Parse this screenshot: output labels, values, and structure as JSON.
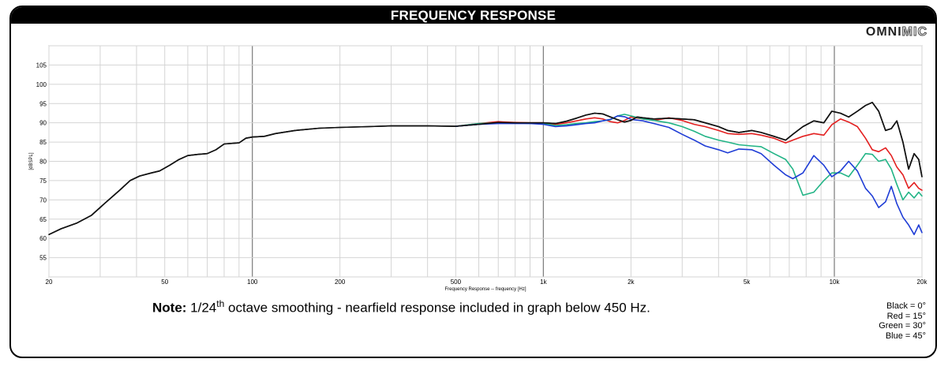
{
  "header": {
    "title": "FREQUENCY RESPONSE"
  },
  "logo": {
    "part1": "OMNI",
    "part2": "MIC"
  },
  "note": {
    "bold": "Note:",
    "text_before": " 1/24",
    "sup": "th",
    "text_after": " octave smoothing - nearfield response included in graph below 450 Hz."
  },
  "legend": {
    "items": [
      "Black = 0°",
      "Red = 15°",
      "Green = 30°",
      "Blue = 45°"
    ]
  },
  "chart_data": {
    "type": "line",
    "xscale": "log",
    "xlim": [
      20,
      20000
    ],
    "ylim": [
      50,
      110
    ],
    "xlabel": "Frequency Response -- frequency [Hz]",
    "ylabel": "[dBSPL]",
    "grid": true,
    "x_tick_labels": [
      {
        "v": 20,
        "t": "20"
      },
      {
        "v": 50,
        "t": "50"
      },
      {
        "v": 100,
        "t": "100"
      },
      {
        "v": 200,
        "t": "200"
      },
      {
        "v": 500,
        "t": "500"
      },
      {
        "v": 1000,
        "t": "1k"
      },
      {
        "v": 2000,
        "t": "2k"
      },
      {
        "v": 5000,
        "t": "5k"
      },
      {
        "v": 10000,
        "t": "10k"
      },
      {
        "v": 20000,
        "t": "20k"
      }
    ],
    "y_tick_labels": [
      55,
      60,
      65,
      70,
      75,
      80,
      85,
      90,
      95,
      100,
      105
    ],
    "series": [
      {
        "name": "Black = 0°",
        "color": "#111111",
        "points": [
          [
            20,
            61
          ],
          [
            22,
            62.5
          ],
          [
            25,
            64
          ],
          [
            28,
            66
          ],
          [
            31,
            69
          ],
          [
            35,
            72.5
          ],
          [
            38,
            75
          ],
          [
            41,
            76.2
          ],
          [
            45,
            77
          ],
          [
            48,
            77.5
          ],
          [
            52,
            79
          ],
          [
            56,
            80.5
          ],
          [
            60,
            81.5
          ],
          [
            65,
            81.8
          ],
          [
            70,
            82
          ],
          [
            75,
            83
          ],
          [
            80,
            84.5
          ],
          [
            90,
            84.8
          ],
          [
            95,
            86
          ],
          [
            100,
            86.3
          ],
          [
            110,
            86.5
          ],
          [
            120,
            87.2
          ],
          [
            140,
            88
          ],
          [
            170,
            88.6
          ],
          [
            200,
            88.8
          ],
          [
            250,
            89
          ],
          [
            300,
            89.2
          ],
          [
            400,
            89.2
          ],
          [
            500,
            89.1
          ],
          [
            600,
            89.6
          ],
          [
            700,
            90.1
          ],
          [
            800,
            90
          ],
          [
            900,
            90
          ],
          [
            1000,
            90
          ],
          [
            1100,
            89.8
          ],
          [
            1200,
            90.4
          ],
          [
            1300,
            91.2
          ],
          [
            1400,
            92
          ],
          [
            1500,
            92.5
          ],
          [
            1600,
            92.3
          ],
          [
            1700,
            91.5
          ],
          [
            1800,
            90.8
          ],
          [
            1900,
            90.2
          ],
          [
            2000,
            90.6
          ],
          [
            2100,
            91.5
          ],
          [
            2200,
            91.3
          ],
          [
            2400,
            91
          ],
          [
            2700,
            91.2
          ],
          [
            3000,
            91
          ],
          [
            3300,
            90.8
          ],
          [
            3600,
            90
          ],
          [
            4000,
            89
          ],
          [
            4300,
            88
          ],
          [
            4700,
            87.5
          ],
          [
            5200,
            88
          ],
          [
            5600,
            87.5
          ],
          [
            6200,
            86.5
          ],
          [
            6800,
            85.5
          ],
          [
            7200,
            87
          ],
          [
            7800,
            89
          ],
          [
            8500,
            90.5
          ],
          [
            9200,
            90
          ],
          [
            9800,
            93
          ],
          [
            10500,
            92.5
          ],
          [
            11200,
            91.5
          ],
          [
            12000,
            93
          ],
          [
            12800,
            94.5
          ],
          [
            13500,
            95.3
          ],
          [
            14200,
            93
          ],
          [
            15000,
            88
          ],
          [
            15700,
            88.5
          ],
          [
            16400,
            90.5
          ],
          [
            17200,
            85
          ],
          [
            18000,
            78
          ],
          [
            18800,
            82
          ],
          [
            19500,
            80.5
          ],
          [
            20000,
            76
          ]
        ]
      },
      {
        "name": "Red = 15°",
        "color": "#e32020",
        "points": [
          [
            500,
            89.1
          ],
          [
            600,
            89.8
          ],
          [
            700,
            90.3
          ],
          [
            800,
            90.1
          ],
          [
            900,
            90
          ],
          [
            1000,
            90
          ],
          [
            1100,
            89.6
          ],
          [
            1200,
            90
          ],
          [
            1300,
            90.5
          ],
          [
            1400,
            91
          ],
          [
            1500,
            91.3
          ],
          [
            1600,
            91
          ],
          [
            1700,
            90.3
          ],
          [
            1800,
            90
          ],
          [
            1900,
            90.6
          ],
          [
            2000,
            91.5
          ],
          [
            2200,
            91
          ],
          [
            2400,
            90.6
          ],
          [
            2700,
            91.3
          ],
          [
            3000,
            90.6
          ],
          [
            3300,
            89.6
          ],
          [
            3600,
            89
          ],
          [
            4000,
            88
          ],
          [
            4300,
            87.2
          ],
          [
            4700,
            87
          ],
          [
            5200,
            87.2
          ],
          [
            5600,
            86.8
          ],
          [
            6200,
            86
          ],
          [
            6800,
            84.8
          ],
          [
            7200,
            85.5
          ],
          [
            7800,
            86.5
          ],
          [
            8500,
            87.2
          ],
          [
            9200,
            86.8
          ],
          [
            9800,
            89.5
          ],
          [
            10500,
            91
          ],
          [
            11200,
            90.2
          ],
          [
            12000,
            89
          ],
          [
            12800,
            86
          ],
          [
            13500,
            83
          ],
          [
            14200,
            82.5
          ],
          [
            15000,
            83.5
          ],
          [
            15700,
            81.5
          ],
          [
            16400,
            78.5
          ],
          [
            17200,
            76.5
          ],
          [
            18000,
            73
          ],
          [
            18800,
            74.5
          ],
          [
            19500,
            73
          ],
          [
            20000,
            72.5
          ]
        ]
      },
      {
        "name": "Green = 30°",
        "color": "#22b486",
        "points": [
          [
            500,
            89.1
          ],
          [
            600,
            89.8
          ],
          [
            700,
            90
          ],
          [
            800,
            90
          ],
          [
            900,
            89.8
          ],
          [
            1000,
            89.8
          ],
          [
            1100,
            89.3
          ],
          [
            1200,
            89.5
          ],
          [
            1300,
            89.8
          ],
          [
            1400,
            90
          ],
          [
            1500,
            90.3
          ],
          [
            1600,
            90.5
          ],
          [
            1700,
            90.8
          ],
          [
            1800,
            91.8
          ],
          [
            1900,
            92.2
          ],
          [
            2000,
            91.8
          ],
          [
            2200,
            91
          ],
          [
            2400,
            90.6
          ],
          [
            2700,
            90
          ],
          [
            3000,
            89
          ],
          [
            3300,
            87.8
          ],
          [
            3600,
            86.5
          ],
          [
            4000,
            85.5
          ],
          [
            4300,
            85
          ],
          [
            4700,
            84.3
          ],
          [
            5200,
            84
          ],
          [
            5600,
            83.8
          ],
          [
            6200,
            82
          ],
          [
            6800,
            80.5
          ],
          [
            7200,
            78
          ],
          [
            7800,
            71.2
          ],
          [
            8500,
            72
          ],
          [
            9200,
            75
          ],
          [
            9800,
            77
          ],
          [
            10500,
            77
          ],
          [
            11200,
            76
          ],
          [
            12000,
            79
          ],
          [
            12800,
            82
          ],
          [
            13500,
            81.8
          ],
          [
            14200,
            80
          ],
          [
            15000,
            80.5
          ],
          [
            15700,
            78
          ],
          [
            16400,
            74
          ],
          [
            17200,
            70
          ],
          [
            18000,
            72
          ],
          [
            18800,
            70.5
          ],
          [
            19500,
            72
          ],
          [
            20000,
            71
          ]
        ]
      },
      {
        "name": "Blue = 45°",
        "color": "#1f3dd6",
        "points": [
          [
            500,
            89.1
          ],
          [
            600,
            89.6
          ],
          [
            700,
            89.8
          ],
          [
            800,
            89.8
          ],
          [
            900,
            89.8
          ],
          [
            1000,
            89.6
          ],
          [
            1100,
            89
          ],
          [
            1200,
            89.2
          ],
          [
            1300,
            89.5
          ],
          [
            1400,
            89.8
          ],
          [
            1500,
            90
          ],
          [
            1600,
            90.5
          ],
          [
            1700,
            90.9
          ],
          [
            1800,
            91.8
          ],
          [
            1900,
            91.6
          ],
          [
            2000,
            90.9
          ],
          [
            2200,
            90.5
          ],
          [
            2400,
            89.8
          ],
          [
            2700,
            88.8
          ],
          [
            3000,
            87
          ],
          [
            3300,
            85.5
          ],
          [
            3600,
            84
          ],
          [
            4000,
            83
          ],
          [
            4300,
            82.2
          ],
          [
            4700,
            83.2
          ],
          [
            5200,
            83
          ],
          [
            5600,
            82
          ],
          [
            6200,
            79
          ],
          [
            6800,
            76.5
          ],
          [
            7200,
            75.5
          ],
          [
            7800,
            77
          ],
          [
            8500,
            81.5
          ],
          [
            9200,
            79
          ],
          [
            9800,
            76
          ],
          [
            10500,
            77.5
          ],
          [
            11200,
            80
          ],
          [
            12000,
            77.5
          ],
          [
            12800,
            73
          ],
          [
            13500,
            71
          ],
          [
            14200,
            68
          ],
          [
            15000,
            69.5
          ],
          [
            15700,
            73.5
          ],
          [
            16400,
            69
          ],
          [
            17200,
            65.5
          ],
          [
            18000,
            63.5
          ],
          [
            18800,
            61
          ],
          [
            19500,
            63.5
          ],
          [
            20000,
            61.5
          ]
        ]
      }
    ]
  }
}
